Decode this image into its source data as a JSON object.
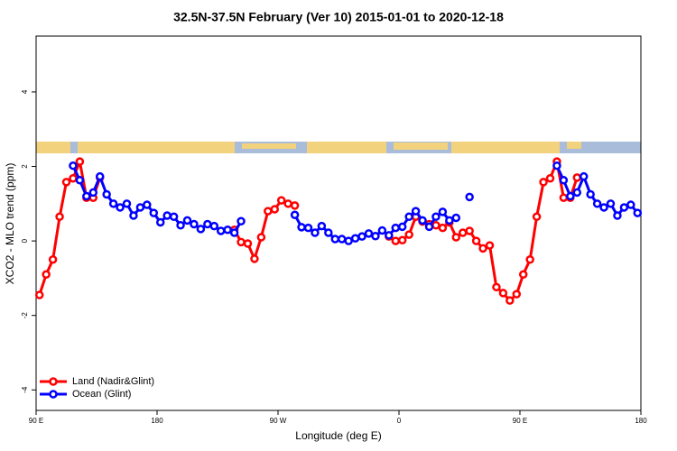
{
  "chart_data": {
    "type": "line",
    "title": "32.5N-37.5N February (Ver 10)   2015-01-01 to 2020-12-18",
    "x_label": "Longitude (deg E)",
    "y_label": "XCO2 - MLO trend (ppm)",
    "x": [
      92.5,
      97.5,
      102.5,
      107.5,
      112.5,
      117.5,
      122.5,
      127.5,
      132.5,
      137.5,
      142.5,
      147.5,
      152.5,
      157.5,
      162.5,
      167.5,
      172.5,
      177.5,
      182.5,
      187.5,
      192.5,
      197.5,
      202.5,
      207.5,
      212.5,
      217.5,
      222.5,
      227.5,
      232.5,
      237.5,
      242.5,
      247.5,
      252.5,
      257.5,
      262.5,
      267.5,
      272.5,
      277.5,
      282.5,
      287.5,
      292.5,
      297.5,
      302.5,
      307.5,
      312.5,
      317.5,
      322.5,
      327.5,
      332.5,
      337.5,
      342.5,
      347.5,
      352.5,
      357.5,
      362.5,
      367.5,
      372.5,
      377.5,
      382.5,
      387.5,
      392.5,
      397.5,
      402.5,
      407.5,
      412.5,
      417.5,
      422.5,
      427.5,
      432.5,
      437.5,
      442.5,
      447.5,
      452.5,
      457.5,
      462.5,
      467.5,
      472.5,
      477.5,
      482.5,
      487.5,
      492.5,
      497.5,
      502.5,
      507.5,
      512.5,
      517.5,
      522.5,
      527.5,
      532.5,
      537.5
    ],
    "series": [
      {
        "name": "Land (Nadir&Glint)",
        "color": "#ff0000",
        "values": [
          -1.45,
          -0.9,
          -0.5,
          0.65,
          1.58,
          1.68,
          2.13,
          1.16,
          1.16,
          1.7,
          null,
          null,
          null,
          null,
          null,
          null,
          null,
          null,
          null,
          null,
          null,
          null,
          null,
          null,
          null,
          null,
          null,
          null,
          null,
          0.3,
          -0.03,
          -0.07,
          -0.48,
          0.1,
          0.8,
          0.85,
          1.09,
          1.0,
          0.95,
          null,
          null,
          null,
          null,
          null,
          null,
          null,
          null,
          null,
          null,
          null,
          null,
          null,
          0.12,
          0.0,
          0.02,
          0.17,
          0.65,
          0.52,
          0.45,
          0.42,
          0.35,
          0.5,
          0.1,
          0.22,
          0.27,
          0.0,
          -0.2,
          -0.12,
          -1.24,
          -1.4,
          -1.6,
          -1.43,
          -0.9,
          -0.5,
          0.65,
          1.58,
          1.68,
          2.13,
          1.16,
          1.16,
          1.7,
          null,
          null,
          null,
          null,
          null,
          null,
          null,
          null,
          null
        ]
      },
      {
        "name": "Ocean (Glint)",
        "color": "#0000ff",
        "values": [
          null,
          null,
          null,
          null,
          null,
          2.02,
          1.63,
          1.2,
          1.3,
          1.73,
          1.25,
          1.0,
          0.9,
          1.0,
          0.68,
          0.9,
          0.97,
          0.75,
          0.5,
          0.68,
          0.65,
          0.42,
          0.55,
          0.45,
          0.32,
          0.45,
          0.4,
          0.27,
          0.3,
          0.22,
          0.53,
          null,
          null,
          null,
          null,
          null,
          null,
          null,
          0.7,
          0.37,
          0.35,
          0.22,
          0.4,
          0.22,
          0.05,
          0.05,
          0.0,
          0.07,
          0.12,
          0.2,
          0.13,
          0.28,
          0.15,
          0.35,
          0.38,
          0.65,
          0.8,
          0.55,
          0.38,
          0.65,
          0.78,
          0.55,
          0.62,
          null,
          1.18,
          null,
          null,
          null,
          null,
          null,
          null,
          null,
          null,
          null,
          null,
          null,
          null,
          2.02,
          1.63,
          1.2,
          1.3,
          1.73,
          1.25,
          1.0,
          0.9,
          1.0,
          0.68,
          0.9,
          0.97,
          0.75
        ]
      }
    ],
    "xlim": [
      90,
      540
    ],
    "xticks": [
      {
        "value": 90,
        "label": "90 E"
      },
      180,
      {
        "value": 270,
        "label": "90 W"
      },
      {
        "value": 360,
        "label": "0"
      },
      {
        "value": 450,
        "label": "90 E"
      },
      {
        "value": 540,
        "label": "180"
      }
    ],
    "ylim": [
      -4.55,
      5.5
    ],
    "yticks": [
      -4,
      -2,
      0,
      2,
      4
    ],
    "legend": "bottom-left"
  }
}
